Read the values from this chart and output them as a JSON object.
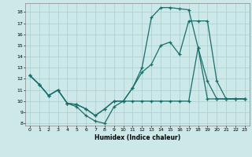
{
  "xlabel": "Humidex (Indice chaleur)",
  "bg_color": "#cce8e8",
  "grid_color": "#aacece",
  "line_color": "#1a6e6a",
  "xlim": [
    -0.5,
    23.5
  ],
  "ylim": [
    7.8,
    18.8
  ],
  "xticks": [
    0,
    1,
    2,
    3,
    4,
    5,
    6,
    7,
    8,
    9,
    10,
    11,
    12,
    13,
    14,
    15,
    16,
    17,
    18,
    19,
    20,
    21,
    22,
    23
  ],
  "yticks": [
    8,
    9,
    10,
    11,
    12,
    13,
    14,
    15,
    16,
    17,
    18
  ],
  "line1_x": [
    0,
    1,
    2,
    3,
    4,
    5,
    6,
    7,
    8,
    9,
    10,
    11,
    12,
    13,
    14,
    15,
    16,
    17,
    18,
    19,
    20,
    21,
    22,
    23
  ],
  "line1_y": [
    12.3,
    11.5,
    10.5,
    11.0,
    9.8,
    9.5,
    8.7,
    8.2,
    8.0,
    9.5,
    10.0,
    11.2,
    13.0,
    17.5,
    18.4,
    18.4,
    18.3,
    18.2,
    14.8,
    11.8,
    10.2,
    10.2,
    10.2,
    10.2
  ],
  "line2_x": [
    0,
    1,
    2,
    3,
    4,
    5,
    6,
    7,
    8,
    9,
    10,
    11,
    12,
    13,
    14,
    15,
    16,
    17,
    18,
    19,
    20,
    21,
    22,
    23
  ],
  "line2_y": [
    12.3,
    11.5,
    10.5,
    11.0,
    9.8,
    9.7,
    9.3,
    8.7,
    9.3,
    10.0,
    10.0,
    11.2,
    12.6,
    13.3,
    15.0,
    15.3,
    14.2,
    17.2,
    17.2,
    17.2,
    11.8,
    10.2,
    10.2,
    10.2
  ],
  "line3_x": [
    0,
    1,
    2,
    3,
    4,
    5,
    6,
    7,
    8,
    9,
    10,
    11,
    12,
    13,
    14,
    15,
    16,
    17,
    18,
    19,
    20,
    21,
    22,
    23
  ],
  "line3_y": [
    12.3,
    11.5,
    10.5,
    11.0,
    9.8,
    9.7,
    9.3,
    8.7,
    9.3,
    10.0,
    10.0,
    10.0,
    10.0,
    10.0,
    10.0,
    10.0,
    10.0,
    10.0,
    14.8,
    10.2,
    10.2,
    10.2,
    10.2,
    10.2
  ]
}
